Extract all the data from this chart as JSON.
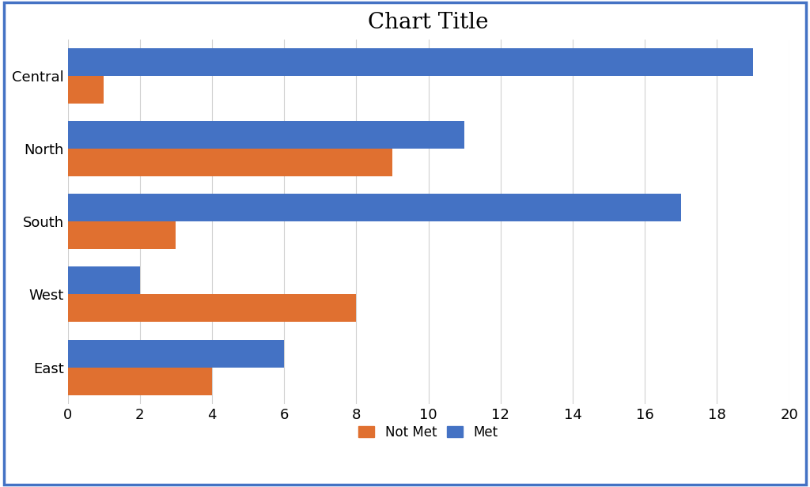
{
  "title": "Chart Title",
  "categories": [
    "Central",
    "North",
    "South",
    "West",
    "East"
  ],
  "not_met": [
    1,
    9,
    3,
    8,
    4
  ],
  "met": [
    19,
    11,
    17,
    2,
    6
  ],
  "not_met_color": "#E07030",
  "met_color": "#4472C4",
  "xlim": [
    0,
    20
  ],
  "xticks": [
    0,
    2,
    4,
    6,
    8,
    10,
    12,
    14,
    16,
    18,
    20
  ],
  "title_fontsize": 20,
  "tick_fontsize": 13,
  "legend_fontsize": 12,
  "bar_height": 0.38,
  "background_color": "#ffffff",
  "grid_color": "#d0d0d0",
  "border_color": "#4472C4"
}
